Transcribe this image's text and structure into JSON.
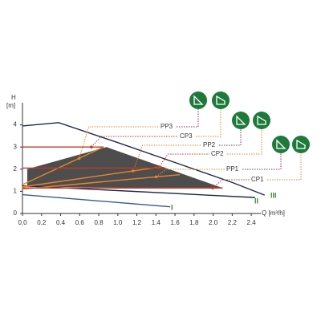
{
  "chart_data": {
    "type": "line",
    "ylabel": "H",
    "yunit": "[m]",
    "xlabel": "Q [m³/h]",
    "xlim": [
      0,
      2.5
    ],
    "ylim": [
      0,
      5
    ],
    "xticks": [
      {
        "value": 0,
        "label": "0.0"
      },
      0.2,
      0.4,
      0.6,
      0.8,
      {
        "value": 1,
        "label": "1.0"
      },
      1.2,
      1.4,
      1.6,
      1.8,
      {
        "value": 2,
        "label": "2.0"
      },
      2.2,
      2.4
    ],
    "yticks": [
      0,
      1,
      2,
      3,
      4
    ],
    "region": {
      "color": "#3a3a3a",
      "x": [
        0.05,
        0.88,
        2.1,
        0.05
      ],
      "values": [
        2.0,
        3.0,
        1.15,
        1.2
      ]
    },
    "series": [
      {
        "name": "III",
        "color": "#1c2a48",
        "x": [
          0,
          0.38,
          1.0,
          1.6,
          2.2,
          2.54
        ],
        "values": [
          3.95,
          4.1,
          3.2,
          2.3,
          1.4,
          0.83
        ]
      },
      {
        "name": "II",
        "color": "#1c2a48",
        "x": [
          0,
          2.44
        ],
        "values": [
          1.25,
          0.72
        ]
      },
      {
        "name": "I",
        "color": "#3a5a8a",
        "x": [
          0,
          1.55
        ],
        "values": [
          0.85,
          0.3
        ]
      },
      {
        "name": "PP3",
        "color": "#e8862a",
        "x": [
          0,
          0.85
        ],
        "values": [
          1.3,
          3.0
        ]
      },
      {
        "name": "CP3",
        "color": "#c0392b",
        "x": [
          0,
          0.85
        ],
        "values": [
          3.0,
          3.0
        ]
      },
      {
        "name": "PP2",
        "color": "#e8862a",
        "x": [
          0,
          1.45
        ],
        "values": [
          1.2,
          2.1
        ]
      },
      {
        "name": "CP2",
        "color": "#c0392b",
        "x": [
          0,
          1.5
        ],
        "values": [
          2.05,
          2.05
        ]
      },
      {
        "name": "PP1",
        "color": "#e8862a",
        "x": [
          0,
          1.65
        ],
        "values": [
          1.1,
          1.75
        ]
      },
      {
        "name": "CP1",
        "color": "#c0392b",
        "x": [
          0,
          2.1
        ],
        "values": [
          1.15,
          1.15
        ]
      }
    ]
  }
}
